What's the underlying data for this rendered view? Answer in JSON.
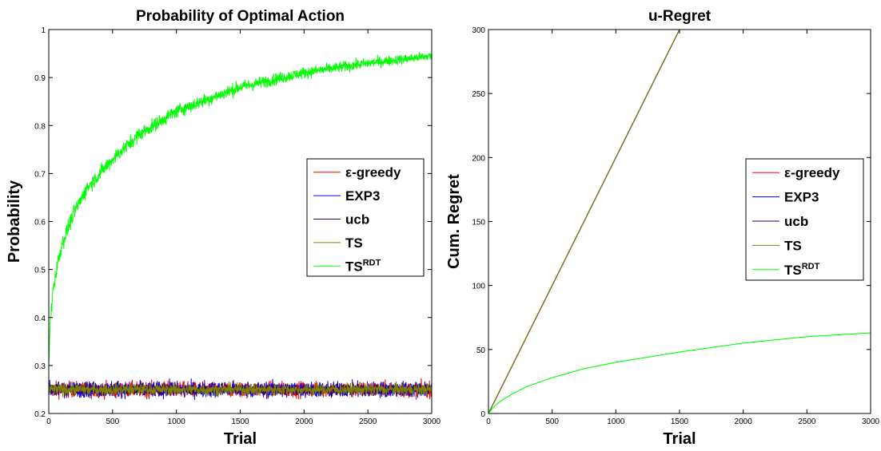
{
  "chart_data": [
    {
      "type": "line",
      "title": "Probability of Optimal Action",
      "xlabel": "Trial",
      "ylabel": "Probability",
      "xlim": [
        0,
        3000
      ],
      "ylim": [
        0.2,
        1
      ],
      "xticks": [
        0,
        500,
        1000,
        1500,
        2000,
        2500,
        3000
      ],
      "yticks": [
        0.2,
        0.3,
        0.4,
        0.5,
        0.6,
        0.7,
        0.8,
        0.9,
        1
      ],
      "grid": false,
      "legend_position": "right",
      "series": [
        {
          "name": "ε-greedy",
          "color": "#ff0000",
          "shape": "noisy_flat",
          "x": [
            0,
            3000
          ],
          "y": [
            0.25,
            0.25
          ],
          "noise_range": [
            0.21,
            0.29
          ]
        },
        {
          "name": "EXP3",
          "color": "#0000ff",
          "shape": "noisy_flat",
          "x": [
            0,
            3000
          ],
          "y": [
            0.25,
            0.25
          ],
          "noise_range": [
            0.21,
            0.29
          ]
        },
        {
          "name": "ucb",
          "color": "#330066",
          "shape": "noisy_flat",
          "x": [
            0,
            3000
          ],
          "y": [
            0.25,
            0.25
          ],
          "noise_range": [
            0.22,
            0.28
          ]
        },
        {
          "name": "TS",
          "color": "#808000",
          "shape": "noisy_flat",
          "x": [
            0,
            3000
          ],
          "y": [
            0.25,
            0.25
          ],
          "noise_range": [
            0.22,
            0.28
          ]
        },
        {
          "name": "TS",
          "name_sup": "RDT",
          "color": "#00ff00",
          "shape": "noisy_curve",
          "x": [
            0,
            10,
            30,
            60,
            100,
            200,
            300,
            500,
            700,
            1000,
            1300,
            1500,
            2000,
            2500,
            3000
          ],
          "y": [
            0.3,
            0.38,
            0.45,
            0.5,
            0.55,
            0.62,
            0.67,
            0.73,
            0.78,
            0.83,
            0.86,
            0.88,
            0.91,
            0.93,
            0.945
          ]
        }
      ]
    },
    {
      "type": "line",
      "title": "u-Regret",
      "xlabel": "Trial",
      "ylabel": "Cum. Regret",
      "xlim": [
        0,
        3000
      ],
      "ylim": [
        0,
        300
      ],
      "xticks": [
        0,
        500,
        1000,
        1500,
        2000,
        2500,
        3000
      ],
      "yticks": [
        0,
        50,
        100,
        150,
        200,
        250,
        300
      ],
      "grid": false,
      "legend_position": "right",
      "series": [
        {
          "name": "ε-greedy",
          "color": "#ff0000",
          "x": [
            0,
            1510
          ],
          "y": [
            0,
            302
          ]
        },
        {
          "name": "EXP3",
          "color": "#0000ff",
          "x": [
            0,
            1510
          ],
          "y": [
            0,
            302
          ]
        },
        {
          "name": "ucb",
          "color": "#330066",
          "x": [
            0,
            1510
          ],
          "y": [
            0,
            302
          ]
        },
        {
          "name": "TS",
          "color": "#808000",
          "x": [
            0,
            1510
          ],
          "y": [
            0,
            302
          ]
        },
        {
          "name": "TS",
          "name_sup": "RDT",
          "color": "#00ff00",
          "x": [
            0,
            50,
            100,
            200,
            300,
            500,
            750,
            1000,
            1500,
            2000,
            2500,
            3000
          ],
          "y": [
            0,
            6,
            10,
            16,
            21,
            28,
            35,
            40,
            48,
            55,
            60,
            63
          ]
        }
      ]
    }
  ]
}
